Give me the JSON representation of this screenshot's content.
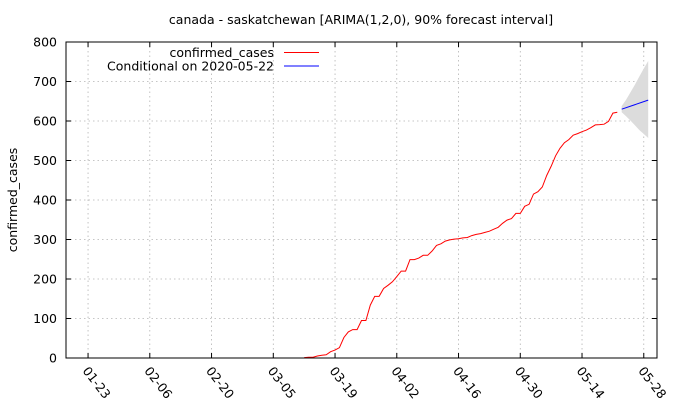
{
  "chart_data": {
    "type": "line",
    "title": "canada - saskatchewan [ARIMA(1,2,0), 90% forecast interval]",
    "xlabel": "",
    "ylabel": "confirmed_cases",
    "xlim": [
      "2020-01-18",
      "2020-05-31"
    ],
    "ylim": [
      0,
      800
    ],
    "yticks": [
      0,
      100,
      200,
      300,
      400,
      500,
      600,
      700,
      800
    ],
    "xticks": [
      "2020-01-23",
      "2020-02-06",
      "2020-02-20",
      "2020-03-05",
      "2020-03-19",
      "2020-04-02",
      "2020-04-16",
      "2020-04-30",
      "2020-05-14",
      "2020-05-28"
    ],
    "xtick_labels": [
      "01-23",
      "02-06",
      "02-20",
      "03-05",
      "03-19",
      "04-02",
      "04-16",
      "04-30",
      "05-14",
      "05-28"
    ],
    "grid": true,
    "legend_position": "top-left",
    "series": [
      {
        "name": "confirmed_cases",
        "color": "#ff0000",
        "points": [
          [
            "2020-03-12",
            1
          ],
          [
            "2020-03-13",
            2
          ],
          [
            "2020-03-14",
            2
          ],
          [
            "2020-03-15",
            5
          ],
          [
            "2020-03-16",
            7
          ],
          [
            "2020-03-17",
            8
          ],
          [
            "2020-03-18",
            16
          ],
          [
            "2020-03-19",
            20
          ],
          [
            "2020-03-20",
            26
          ],
          [
            "2020-03-21",
            52
          ],
          [
            "2020-03-22",
            66
          ],
          [
            "2020-03-23",
            72
          ],
          [
            "2020-03-24",
            72
          ],
          [
            "2020-03-25",
            95
          ],
          [
            "2020-03-26",
            95
          ],
          [
            "2020-03-27",
            134
          ],
          [
            "2020-03-28",
            156
          ],
          [
            "2020-03-29",
            156
          ],
          [
            "2020-03-30",
            176
          ],
          [
            "2020-03-31",
            184
          ],
          [
            "2020-04-01",
            193
          ],
          [
            "2020-04-02",
            206
          ],
          [
            "2020-04-03",
            220
          ],
          [
            "2020-04-04",
            220
          ],
          [
            "2020-04-05",
            249
          ],
          [
            "2020-04-06",
            249
          ],
          [
            "2020-04-07",
            253
          ],
          [
            "2020-04-08",
            260
          ],
          [
            "2020-04-09",
            260
          ],
          [
            "2020-04-10",
            271
          ],
          [
            "2020-04-11",
            285
          ],
          [
            "2020-04-12",
            289
          ],
          [
            "2020-04-13",
            296
          ],
          [
            "2020-04-14",
            299
          ],
          [
            "2020-04-15",
            301
          ],
          [
            "2020-04-16",
            302
          ],
          [
            "2020-04-17",
            304
          ],
          [
            "2020-04-18",
            305
          ],
          [
            "2020-04-19",
            310
          ],
          [
            "2020-04-20",
            313
          ],
          [
            "2020-04-21",
            315
          ],
          [
            "2020-04-22",
            318
          ],
          [
            "2020-04-23",
            321
          ],
          [
            "2020-04-24",
            326
          ],
          [
            "2020-04-25",
            331
          ],
          [
            "2020-04-26",
            341
          ],
          [
            "2020-04-27",
            349
          ],
          [
            "2020-04-28",
            353
          ],
          [
            "2020-04-29",
            366
          ],
          [
            "2020-04-30",
            366
          ],
          [
            "2020-05-01",
            384
          ],
          [
            "2020-05-02",
            389
          ],
          [
            "2020-05-03",
            415
          ],
          [
            "2020-05-04",
            421
          ],
          [
            "2020-05-05",
            433
          ],
          [
            "2020-05-06",
            462
          ],
          [
            "2020-05-07",
            485
          ],
          [
            "2020-05-08",
            512
          ],
          [
            "2020-05-09",
            531
          ],
          [
            "2020-05-10",
            545
          ],
          [
            "2020-05-11",
            553
          ],
          [
            "2020-05-12",
            564
          ],
          [
            "2020-05-13",
            568
          ],
          [
            "2020-05-14",
            573
          ],
          [
            "2020-05-15",
            577
          ],
          [
            "2020-05-16",
            583
          ],
          [
            "2020-05-17",
            590
          ],
          [
            "2020-05-18",
            591
          ],
          [
            "2020-05-19",
            592
          ],
          [
            "2020-05-20",
            599
          ],
          [
            "2020-05-21",
            620
          ],
          [
            "2020-05-22",
            622
          ]
        ]
      },
      {
        "name": "Conditional on 2020-05-22",
        "color": "#0000ff",
        "points": [
          [
            "2020-05-23",
            630
          ],
          [
            "2020-05-29",
            653
          ]
        ]
      }
    ],
    "forecast_interval": {
      "level": "90%",
      "color": "#dcdcdc",
      "points": [
        [
          "2020-05-23",
          622,
          638
        ],
        [
          "2020-05-24",
          612,
          654
        ],
        [
          "2020-05-25",
          601,
          673
        ],
        [
          "2020-05-26",
          589,
          692
        ],
        [
          "2020-05-27",
          577,
          713
        ],
        [
          "2020-05-28",
          567,
          733
        ],
        [
          "2020-05-29",
          557,
          752
        ]
      ]
    }
  }
}
